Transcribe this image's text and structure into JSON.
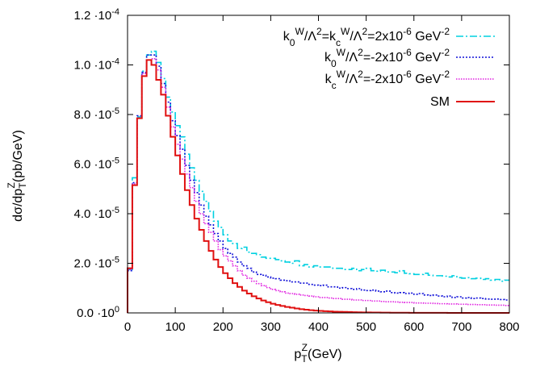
{
  "chart_data": {
    "type": "line",
    "title": "",
    "xlabel": {
      "base": "p",
      "sub": "T",
      "sup": "Z",
      "rest": "(GeV)"
    },
    "ylabel": {
      "base": "dσ/dp",
      "sub": "T",
      "sup": "Z",
      "rest": "(pb/GeV)"
    },
    "xlim": [
      0,
      800
    ],
    "ylim": [
      0,
      0.00012
    ],
    "x_ticks": [
      {
        "value": 0,
        "label": "0"
      },
      {
        "value": 100,
        "label": "100"
      },
      {
        "value": 200,
        "label": "200"
      },
      {
        "value": 300,
        "label": "300"
      },
      {
        "value": 400,
        "label": "400"
      },
      {
        "value": 500,
        "label": "500"
      },
      {
        "value": 600,
        "label": "600"
      },
      {
        "value": 700,
        "label": "700"
      },
      {
        "value": 800,
        "label": "800"
      }
    ],
    "y_ticks": [
      {
        "value": 0,
        "mant": "0.0 ·10",
        "exp": "0"
      },
      {
        "value": 2e-05,
        "mant": "2.0 ·10",
        "exp": "-5"
      },
      {
        "value": 4e-05,
        "mant": "4.0 ·10",
        "exp": "-5"
      },
      {
        "value": 6e-05,
        "mant": "6.0 ·10",
        "exp": "-5"
      },
      {
        "value": 8e-05,
        "mant": "8.0 ·10",
        "exp": "-5"
      },
      {
        "value": 0.0001,
        "mant": "1.0 ·10",
        "exp": "-4"
      },
      {
        "value": 0.00012,
        "mant": "1.2 ·10",
        "exp": "-4"
      }
    ],
    "grid": false,
    "legend_position": "top-right",
    "bin_width": 10,
    "series": [
      {
        "name": "k0W/Λ2=kcW/Λ2=2x10-6 GeV-2",
        "color": "#00d0e0",
        "dash": "9,3,2,3",
        "values": [
          1.75e-05,
          5.45e-05,
          7.9e-05,
          9.75e-05,
          0.000104,
          0.0001055,
          0.000101,
          9.45e-05,
          8.7e-05,
          8.1e-05,
          7.55e-05,
          7.1e-05,
          6.4e-05,
          5.85e-05,
          5.35e-05,
          4.9e-05,
          4.5e-05,
          4.1e-05,
          3.7e-05,
          3.45e-05,
          3.15e-05,
          2.9e-05,
          2.8e-05,
          2.6e-05,
          2.65e-05,
          2.45e-05,
          2.4e-05,
          2.35e-05,
          2.25e-05,
          2.2e-05,
          2.2e-05,
          2.15e-05,
          2.1e-05,
          2.05e-05,
          2e-05,
          2.1e-05,
          1.9e-05,
          1.95e-05,
          1.85e-05,
          1.9e-05,
          1.85e-05,
          1.85e-05,
          1.85e-05,
          1.8e-05,
          1.8e-05,
          1.75e-05,
          1.75e-05,
          1.8e-05,
          1.7e-05,
          1.75e-05,
          1.8e-05,
          1.7e-05,
          1.68e-05,
          1.72e-05,
          1.65e-05,
          1.65e-05,
          1.62e-05,
          1.7e-05,
          1.6e-05,
          1.58e-05,
          1.55e-05,
          1.55e-05,
          1.6e-05,
          1.52e-05,
          1.5e-05,
          1.5e-05,
          1.48e-05,
          1.45e-05,
          1.5e-05,
          1.42e-05,
          1.4e-05,
          1.42e-05,
          1.38e-05,
          1.4e-05,
          1.35e-05,
          1.38e-05,
          1.32e-05,
          1.35e-05,
          1.28e-05,
          1.32e-05
        ]
      },
      {
        "name": "k0W/Λ2=-2x10-6 GeV-2",
        "color": "#1010d8",
        "dash": "2,2",
        "values": [
          1.7e-05,
          5.25e-05,
          7.95e-05,
          9.7e-05,
          0.000104,
          0.000104,
          9.95e-05,
          9.25e-05,
          8.5e-05,
          7.75e-05,
          7.15e-05,
          6.6e-05,
          5.95e-05,
          5.35e-05,
          4.85e-05,
          4.35e-05,
          3.9e-05,
          3.55e-05,
          3.2e-05,
          2.9e-05,
          2.6e-05,
          2.4e-05,
          2.25e-05,
          2.05e-05,
          1.9e-05,
          1.8e-05,
          1.65e-05,
          1.55e-05,
          1.52e-05,
          1.45e-05,
          1.4e-05,
          1.38e-05,
          1.32e-05,
          1.3e-05,
          1.25e-05,
          1.25e-05,
          1.2e-05,
          1.2e-05,
          1.15e-05,
          1.12e-05,
          1.1e-05,
          1.12e-05,
          1.05e-05,
          1.05e-05,
          1e-05,
          1.02e-05,
          9.8e-06,
          9.5e-06,
          9.8e-06,
          9.2e-06,
          9e-06,
          9.2e-06,
          8.8e-06,
          8.5e-06,
          8.8e-06,
          8.2e-06,
          8e-06,
          8.2e-06,
          7.8e-06,
          8e-06,
          7.5e-06,
          7.8e-06,
          7.2e-06,
          7e-06,
          7.2e-06,
          6.8e-06,
          6.5e-06,
          6.8e-06,
          6.2e-06,
          6.5e-06,
          6e-06,
          6.2e-06,
          5.8e-06,
          6e-06,
          5.8e-06,
          5.6e-06,
          5.5e-06,
          5.6e-06,
          5.4e-06,
          5.2e-06
        ]
      },
      {
        "name": "kcW/Λ2=-2x10-6 GeV-2",
        "color": "#e020e0",
        "dash": "1.5,1.5",
        "values": [
          1.75e-05,
          5.2e-05,
          7.85e-05,
          9.65e-05,
          0.000102,
          0.0001025,
          9.8e-05,
          9.1e-05,
          8.3e-05,
          7.5e-05,
          6.8e-05,
          6.2e-05,
          5.6e-05,
          5.05e-05,
          4.5e-05,
          4e-05,
          3.6e-05,
          3.25e-05,
          2.9e-05,
          2.55e-05,
          2.3e-05,
          2.1e-05,
          1.9e-05,
          1.7e-05,
          1.52e-05,
          1.4e-05,
          1.28e-05,
          1.18e-05,
          1.1e-05,
          1.02e-05,
          9.5e-06,
          9e-06,
          8.5e-06,
          8e-06,
          7.8e-06,
          7.5e-06,
          7.2e-06,
          7e-06,
          6.8e-06,
          6.5e-06,
          6.2e-06,
          6.2e-06,
          6e-06,
          5.8e-06,
          5.8e-06,
          5.5e-06,
          5.5e-06,
          5.2e-06,
          5.2e-06,
          5e-06,
          5e-06,
          4.8e-06,
          4.8e-06,
          4.6e-06,
          4.5e-06,
          4.5e-06,
          4.4e-06,
          4.3e-06,
          4.2e-06,
          4.2e-06,
          4e-06,
          4e-06,
          3.9e-06,
          3.9e-06,
          3.8e-06,
          3.7e-06,
          3.7e-06,
          3.6e-06,
          3.6e-06,
          3.5e-06,
          3.5e-06,
          3.4e-06,
          3.4e-06,
          3.3e-06,
          3.3e-06,
          3.2e-06,
          3.2e-06,
          3.1e-06,
          3.1e-06,
          3e-06
        ]
      },
      {
        "name": "SM",
        "color": "#e01010",
        "dash": "",
        "values": [
          1.8e-05,
          5.15e-05,
          7.85e-05,
          9.55e-05,
          0.000102,
          0.0001,
          9.4e-05,
          8.8e-05,
          7.95e-05,
          7.1e-05,
          6.35e-05,
          5.6e-05,
          4.95e-05,
          4.35e-05,
          3.8e-05,
          3.35e-05,
          2.9e-05,
          2.5e-05,
          2.15e-05,
          1.85e-05,
          1.6e-05,
          1.4e-05,
          1.2e-05,
          1.05e-05,
          9e-06,
          7.8e-06,
          6.7e-06,
          5.8e-06,
          5e-06,
          4.3e-06,
          3.7e-06,
          3.2e-06,
          2.8e-06,
          2.4e-06,
          2.1e-06,
          1.8e-06,
          1.5e-06,
          1.3e-06,
          1.1e-06,
          9.5e-07,
          8e-07,
          7e-07,
          6e-07,
          5e-07,
          4.5e-07,
          4e-07,
          3.5e-07,
          3e-07,
          2.6e-07,
          2.2e-07,
          2e-07,
          1.7e-07,
          1.5e-07,
          1.3e-07,
          1.1e-07,
          1e-07,
          9e-08,
          8e-08,
          7e-08,
          6e-08,
          5e-08,
          5e-08,
          4e-08,
          4e-08,
          3e-08,
          3e-08,
          3e-08,
          2e-08,
          2e-08,
          2e-08,
          2e-08,
          1e-08,
          1e-08,
          1e-08,
          1e-08,
          1e-08,
          1e-08,
          1e-08,
          1e-08,
          1e-08
        ]
      }
    ],
    "legend": [
      {
        "segs": [
          [
            "k",
            ""
          ],
          [
            "0",
            "sub"
          ],
          [
            "W",
            "sup"
          ],
          [
            "/Λ",
            ""
          ],
          [
            "2",
            "sup"
          ],
          [
            "=k",
            ""
          ],
          [
            "c",
            "sub"
          ],
          [
            "W",
            "sup"
          ],
          [
            "/Λ",
            ""
          ],
          [
            "2",
            "sup"
          ],
          [
            "=2x10",
            ""
          ],
          [
            "-6",
            "sup"
          ],
          [
            " GeV",
            ""
          ],
          [
            "-2",
            "sup"
          ]
        ]
      },
      {
        "segs": [
          [
            "k",
            ""
          ],
          [
            "0",
            "sub"
          ],
          [
            "W",
            "sup"
          ],
          [
            "/Λ",
            ""
          ],
          [
            "2",
            "sup"
          ],
          [
            "=-2x10",
            ""
          ],
          [
            "-6",
            "sup"
          ],
          [
            " GeV",
            ""
          ],
          [
            "-2",
            "sup"
          ]
        ]
      },
      {
        "segs": [
          [
            "k",
            ""
          ],
          [
            "c",
            "sub"
          ],
          [
            "W",
            "sup"
          ],
          [
            "/Λ",
            ""
          ],
          [
            "2",
            "sup"
          ],
          [
            "=-2x10",
            ""
          ],
          [
            "-6",
            "sup"
          ],
          [
            " GeV",
            ""
          ],
          [
            "-2",
            "sup"
          ]
        ]
      },
      {
        "segs": [
          [
            "SM",
            ""
          ]
        ]
      }
    ]
  }
}
